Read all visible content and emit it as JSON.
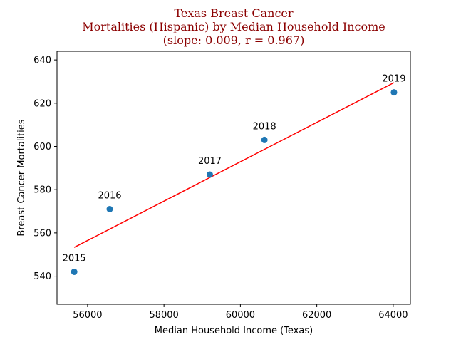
{
  "chart_data": {
    "type": "scatter",
    "title": "Texas Breast Cancer\nMortalities (Hispanic) by Median Household Income\n(slope: 0.009, r = 0.967)",
    "xlabel": "Median Household Income (Texas)",
    "ylabel": "Breast Cancer Mortalities",
    "xlim": [
      55200,
      64450
    ],
    "ylim": [
      527,
      644
    ],
    "xticks": [
      56000,
      58000,
      60000,
      62000,
      64000
    ],
    "yticks": [
      540,
      560,
      580,
      600,
      620,
      640
    ],
    "grid": false,
    "legend": "none",
    "series": [
      {
        "x": [
          55650,
          56580,
          59200,
          60630,
          64020
        ],
        "y": [
          542,
          571,
          587,
          603,
          625
        ],
        "labels": [
          "2015",
          "2016",
          "2017",
          "2018",
          "2019"
        ],
        "color": "#1f77b4"
      }
    ],
    "fit_line": {
      "x": [
        55650,
        64020
      ],
      "y": [
        553.3,
        629.5
      ],
      "color": "#ff0000"
    },
    "title_color": "#8b0000"
  }
}
